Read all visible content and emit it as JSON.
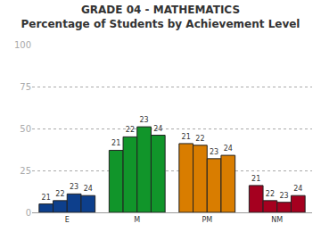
{
  "chart_data": {
    "type": "bar",
    "title": "GRADE 04 - MATHEMATICS",
    "subtitle": "Percentage of Students by Achievement Level",
    "categories": [
      "E",
      "M",
      "PM",
      "NM"
    ],
    "series": [
      {
        "name": "21",
        "colors": [
          "#0d3f8c",
          "#11952a",
          "#d97d00",
          "#a5001f"
        ],
        "values": [
          5,
          37,
          41,
          16
        ]
      },
      {
        "name": "22",
        "colors": [
          "#0d3f8c",
          "#11952a",
          "#d97d00",
          "#a5001f"
        ],
        "values": [
          7,
          45,
          40,
          7
        ]
      },
      {
        "name": "23",
        "colors": [
          "#0d3f8c",
          "#11952a",
          "#d97d00",
          "#a5001f"
        ],
        "values": [
          11,
          51,
          32,
          6
        ]
      },
      {
        "name": "24",
        "colors": [
          "#0d3f8c",
          "#11952a",
          "#d97d00",
          "#a5001f"
        ],
        "values": [
          10,
          46,
          34,
          10
        ]
      }
    ],
    "ylim": [
      0,
      100
    ],
    "yticks": [
      0,
      25,
      50,
      75,
      100
    ],
    "grid": true
  }
}
